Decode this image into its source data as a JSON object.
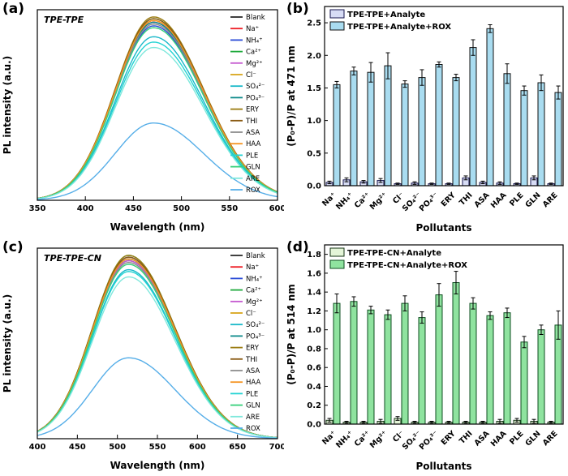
{
  "chart_data": [
    {
      "id": "a",
      "panel_label": "(a)",
      "type": "line",
      "title": "TPE-TPE",
      "xlabel": "Wavelength (nm)",
      "ylabel": "PL intensity (a.u.)",
      "xlim": [
        350,
        600
      ],
      "xticks": [
        350,
        400,
        450,
        500,
        550,
        600
      ],
      "peak_wavelength": 471,
      "sigma_left": 40,
      "sigma_right": 52,
      "grid": false,
      "legend_position": "right-inside",
      "series": [
        {
          "name": "Blank",
          "color": "#2b2b2b",
          "peak": 0.99
        },
        {
          "name": "Na⁺",
          "color": "#ee1d25",
          "peak": 1.0
        },
        {
          "name": "NH₄⁺",
          "color": "#2a4bd7",
          "peak": 0.97
        },
        {
          "name": "Ca²⁺",
          "color": "#1faa3c",
          "peak": 1.01
        },
        {
          "name": "Mg²⁺",
          "color": "#c45ad0",
          "peak": 0.99
        },
        {
          "name": "Cl⁻",
          "color": "#d8a51c",
          "peak": 1.0
        },
        {
          "name": "SO₄²⁻",
          "color": "#19b8c9",
          "peak": 0.91
        },
        {
          "name": "PO₄³⁻",
          "color": "#0d8a8a",
          "peak": 0.99
        },
        {
          "name": "ERY",
          "color": "#9a7b10",
          "peak": 1.02
        },
        {
          "name": "THI",
          "color": "#8a5a13",
          "peak": 1.01
        },
        {
          "name": "ASA",
          "color": "#8c8c8c",
          "peak": 0.98
        },
        {
          "name": "HAA",
          "color": "#f59321",
          "peak": 1.0
        },
        {
          "name": "PLE",
          "color": "#23d3d3",
          "peak": 0.88
        },
        {
          "name": "GLN",
          "color": "#35d07a",
          "peak": 0.96
        },
        {
          "name": "ARE",
          "color": "#7fe8dc",
          "peak": 0.85
        },
        {
          "name": "ROX",
          "color": "#56aee8",
          "peak": 0.43
        }
      ]
    },
    {
      "id": "b",
      "panel_label": "(b)",
      "type": "bar",
      "xlabel": "Pollutants",
      "ylabel": "(P₀-P)/P at 471 nm",
      "ylim": [
        0,
        2.75
      ],
      "yticks": [
        0.0,
        0.5,
        1.0,
        1.5,
        2.0,
        2.5
      ],
      "grid": false,
      "legend_position": "top-left-inside",
      "categories": [
        "Na⁺",
        "NH₄⁺",
        "Ca²⁺",
        "Mg²⁺",
        "Cl⁻",
        "SO₄²⁻",
        "PO₄³⁻",
        "ERY",
        "THI",
        "ASA",
        "HAA",
        "PLE",
        "GLN",
        "ARE"
      ],
      "series": [
        {
          "name": "TPE-TPE+Analyte",
          "fill": "#d7dcf5",
          "stroke": "#15154d",
          "values": [
            0.05,
            0.09,
            0.06,
            0.08,
            0.03,
            0.04,
            0.03,
            0.03,
            0.12,
            0.05,
            0.04,
            0.03,
            0.12,
            0.03
          ],
          "errors": [
            0.02,
            0.03,
            0.02,
            0.03,
            0.01,
            0.02,
            0.01,
            0.01,
            0.03,
            0.02,
            0.02,
            0.01,
            0.03,
            0.01
          ]
        },
        {
          "name": "TPE-TPE+Analyte+ROX",
          "fill": "#a9dcf0",
          "stroke": "#101010",
          "values": [
            1.55,
            1.76,
            1.74,
            1.84,
            1.56,
            1.66,
            1.86,
            1.66,
            2.12,
            2.41,
            1.72,
            1.46,
            1.58,
            1.43
          ],
          "errors": [
            0.05,
            0.06,
            0.15,
            0.2,
            0.05,
            0.12,
            0.04,
            0.05,
            0.12,
            0.06,
            0.15,
            0.07,
            0.12,
            0.1
          ]
        }
      ]
    },
    {
      "id": "c",
      "panel_label": "(c)",
      "type": "line",
      "title": "TPE-TPE-CN",
      "xlabel": "Wavelength (nm)",
      "ylabel": "PL intensity (a.u.)",
      "xlim": [
        400,
        700
      ],
      "xticks": [
        400,
        450,
        500,
        550,
        600,
        650,
        700
      ],
      "peak_wavelength": 514,
      "sigma_left": 45,
      "sigma_right": 58,
      "grid": false,
      "legend_position": "right-inside",
      "series": [
        {
          "name": "Blank",
          "color": "#2b2b2b",
          "peak": 0.99
        },
        {
          "name": "Na⁺",
          "color": "#ee1d25",
          "peak": 1.0
        },
        {
          "name": "NH₄⁺",
          "color": "#2a4bd7",
          "peak": 1.01
        },
        {
          "name": "Ca²⁺",
          "color": "#1faa3c",
          "peak": 1.02
        },
        {
          "name": "Mg²⁺",
          "color": "#c45ad0",
          "peak": 0.99
        },
        {
          "name": "Cl⁻",
          "color": "#d8a51c",
          "peak": 1.0
        },
        {
          "name": "SO₄²⁻",
          "color": "#19b8c9",
          "peak": 0.94
        },
        {
          "name": "PO₄³⁻",
          "color": "#0d8a8a",
          "peak": 1.0
        },
        {
          "name": "ERY",
          "color": "#9a7b10",
          "peak": 1.02
        },
        {
          "name": "THI",
          "color": "#8a5a13",
          "peak": 1.01
        },
        {
          "name": "ASA",
          "color": "#8c8c8c",
          "peak": 0.98
        },
        {
          "name": "HAA",
          "color": "#f59321",
          "peak": 1.0
        },
        {
          "name": "PLE",
          "color": "#23d3d3",
          "peak": 0.93
        },
        {
          "name": "GLN",
          "color": "#35d07a",
          "peak": 0.97
        },
        {
          "name": "ARE",
          "color": "#7fe8dc",
          "peak": 0.9
        },
        {
          "name": "ROX",
          "color": "#56aee8",
          "peak": 0.45
        }
      ]
    },
    {
      "id": "d",
      "panel_label": "(d)",
      "type": "bar",
      "xlabel": "Pollutants",
      "ylabel": "(P₀-P)/P at 514 nm",
      "ylim": [
        0,
        1.9
      ],
      "yticks": [
        0.0,
        0.2,
        0.4,
        0.6,
        0.8,
        1.0,
        1.2,
        1.4,
        1.6,
        1.8
      ],
      "grid": false,
      "legend_position": "top-left-inside",
      "categories": [
        "Na⁺",
        "NH₄⁺",
        "Ca²⁺",
        "Mg²⁺",
        "Cl⁻",
        "SO₄²⁻",
        "PO₄³⁻",
        "ERY",
        "THI",
        "ASA",
        "HAA",
        "PLE",
        "GLN",
        "ARE"
      ],
      "series": [
        {
          "name": "TPE-TPE-CN+Analyte",
          "fill": "#e4f5d8",
          "stroke": "#143314",
          "values": [
            0.04,
            0.02,
            0.02,
            0.03,
            0.06,
            0.02,
            0.02,
            0.02,
            0.02,
            0.02,
            0.03,
            0.04,
            0.03,
            0.02
          ],
          "errors": [
            0.02,
            0.01,
            0.01,
            0.02,
            0.02,
            0.01,
            0.01,
            0.01,
            0.01,
            0.01,
            0.02,
            0.02,
            0.02,
            0.01
          ]
        },
        {
          "name": "TPE-TPE-CN+Analyte+ROX",
          "fill": "#8fe39f",
          "stroke": "#0d4d1f",
          "values": [
            1.28,
            1.3,
            1.21,
            1.16,
            1.28,
            1.13,
            1.37,
            1.5,
            1.28,
            1.15,
            1.18,
            0.87,
            1.0,
            1.05
          ],
          "errors": [
            0.1,
            0.05,
            0.04,
            0.05,
            0.08,
            0.06,
            0.12,
            0.12,
            0.06,
            0.04,
            0.05,
            0.06,
            0.05,
            0.15
          ]
        }
      ]
    }
  ]
}
